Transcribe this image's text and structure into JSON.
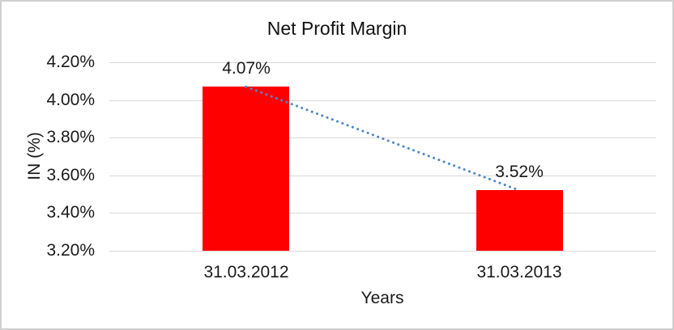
{
  "frame": {
    "background": "#ffffff",
    "border_color": "#cfcfcf"
  },
  "chart_data": {
    "type": "bar",
    "title": "Net Profit Margin",
    "xlabel": "Years",
    "ylabel": "IN (%)",
    "categories": [
      "31.03.2012",
      "31.03.2013"
    ],
    "values": [
      4.07,
      3.52
    ],
    "data_labels": [
      "4.07%",
      "3.52%"
    ],
    "ylim": [
      3.2,
      4.2
    ],
    "yticks": [
      3.2,
      3.4,
      3.6,
      3.8,
      4.0,
      4.2
    ],
    "ytick_labels": [
      "3.20%",
      "3.40%",
      "3.60%",
      "3.80%",
      "4.00%",
      "4.20%"
    ],
    "bar_color": "#ff0000",
    "gridline_color": "#d9d9d9",
    "grid": true,
    "legend": "none",
    "trendline": {
      "type": "linear",
      "style": "dotted",
      "color": "#4e86c8",
      "from_value": 4.07,
      "to_value": 3.52
    }
  }
}
